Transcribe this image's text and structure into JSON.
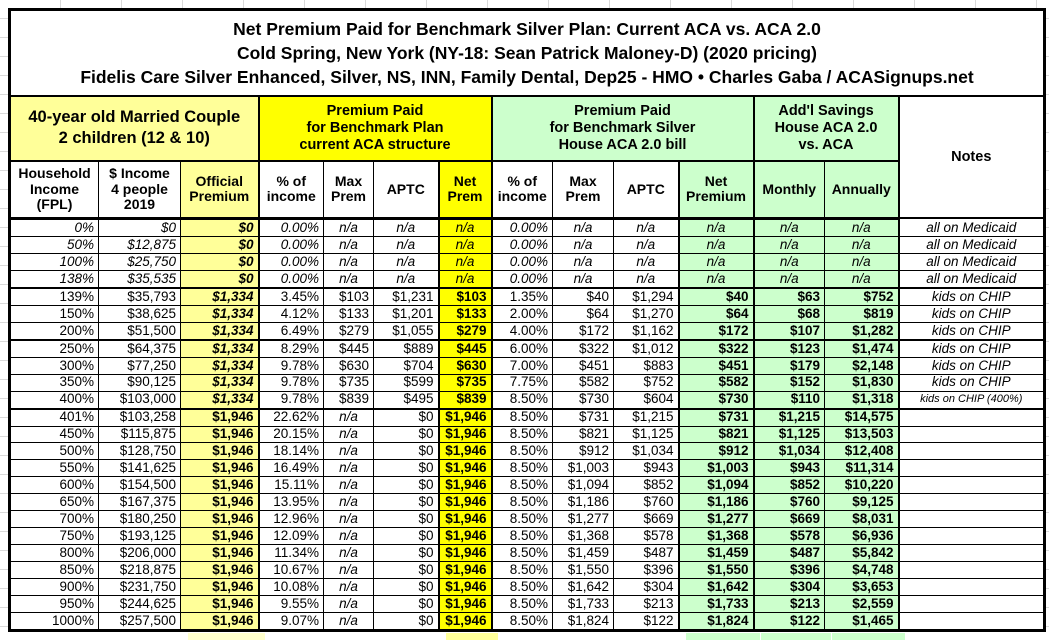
{
  "title": {
    "line1": "Net Premium Paid for Benchmark Silver Plan: Current ACA vs. ACA 2.0",
    "line2": "Cold Spring, New York (NY-18: Sean Patrick Maloney-D) (2020 pricing)",
    "line3": "Fidelis Care Silver Enhanced, Silver, NS, INN, Family Dental, Dep25 - HMO • Charles Gaba / ACASignups.net"
  },
  "group_headers": {
    "household": "40-year old Married Couple\n2 children (12 & 10)",
    "aca_current": "Premium Paid\nfor Benchmark Plan\ncurrent ACA structure",
    "aca2": "Premium Paid\nfor Benchmark Silver\nHouse ACA 2.0 bill",
    "savings": "Add'l Savings\nHouse ACA 2.0\nvs. ACA",
    "notes": "Notes"
  },
  "column_headers": [
    "Household\nIncome\n(FPL)",
    "$ Income\n4 people\n2019",
    "Official\nPremium",
    "% of\nincome",
    "Max\nPrem",
    "APTC",
    "Net\nPrem",
    "% of\nincome",
    "Max\nPrem",
    "APTC",
    "Net\nPremium",
    "Monthly",
    "Annually"
  ],
  "colors": {
    "pale_yellow": "#FFFF99",
    "bright_yellow": "#FFFF00",
    "pale_green": "#CCFFCC",
    "border": "#000000"
  },
  "separator_rows": [
    "139%",
    "250%",
    "401%"
  ],
  "rows": [
    {
      "fpl": "0%",
      "income": "$0",
      "official": "$0",
      "aca_pct": "0.00%",
      "aca_max": "n/a",
      "aca_aptc": "n/a",
      "aca_net": "n/a",
      "aca2_pct": "0.00%",
      "aca2_max": "n/a",
      "aca2_aptc": "n/a",
      "aca2_net": "n/a",
      "monthly": "n/a",
      "annually": "n/a",
      "note": "all on Medicaid"
    },
    {
      "fpl": "50%",
      "income": "$12,875",
      "official": "$0",
      "aca_pct": "0.00%",
      "aca_max": "n/a",
      "aca_aptc": "n/a",
      "aca_net": "n/a",
      "aca2_pct": "0.00%",
      "aca2_max": "n/a",
      "aca2_aptc": "n/a",
      "aca2_net": "n/a",
      "monthly": "n/a",
      "annually": "n/a",
      "note": "all on Medicaid"
    },
    {
      "fpl": "100%",
      "income": "$25,750",
      "official": "$0",
      "aca_pct": "0.00%",
      "aca_max": "n/a",
      "aca_aptc": "n/a",
      "aca_net": "n/a",
      "aca2_pct": "0.00%",
      "aca2_max": "n/a",
      "aca2_aptc": "n/a",
      "aca2_net": "n/a",
      "monthly": "n/a",
      "annually": "n/a",
      "note": "all on Medicaid"
    },
    {
      "fpl": "138%",
      "income": "$35,535",
      "official": "$0",
      "aca_pct": "0.00%",
      "aca_max": "n/a",
      "aca_aptc": "n/a",
      "aca_net": "n/a",
      "aca2_pct": "0.00%",
      "aca2_max": "n/a",
      "aca2_aptc": "n/a",
      "aca2_net": "n/a",
      "monthly": "n/a",
      "annually": "n/a",
      "note": "all on Medicaid"
    },
    {
      "fpl": "139%",
      "income": "$35,793",
      "official": "$1,334",
      "aca_pct": "3.45%",
      "aca_max": "$103",
      "aca_aptc": "$1,231",
      "aca_net": "$103",
      "aca2_pct": "1.35%",
      "aca2_max": "$40",
      "aca2_aptc": "$1,294",
      "aca2_net": "$40",
      "monthly": "$63",
      "annually": "$752",
      "note": "kids on CHIP"
    },
    {
      "fpl": "150%",
      "income": "$38,625",
      "official": "$1,334",
      "aca_pct": "4.12%",
      "aca_max": "$133",
      "aca_aptc": "$1,201",
      "aca_net": "$133",
      "aca2_pct": "2.00%",
      "aca2_max": "$64",
      "aca2_aptc": "$1,270",
      "aca2_net": "$64",
      "monthly": "$68",
      "annually": "$819",
      "note": "kids on CHIP"
    },
    {
      "fpl": "200%",
      "income": "$51,500",
      "official": "$1,334",
      "aca_pct": "6.49%",
      "aca_max": "$279",
      "aca_aptc": "$1,055",
      "aca_net": "$279",
      "aca2_pct": "4.00%",
      "aca2_max": "$172",
      "aca2_aptc": "$1,162",
      "aca2_net": "$172",
      "monthly": "$107",
      "annually": "$1,282",
      "note": "kids on CHIP"
    },
    {
      "fpl": "250%",
      "income": "$64,375",
      "official": "$1,334",
      "aca_pct": "8.29%",
      "aca_max": "$445",
      "aca_aptc": "$889",
      "aca_net": "$445",
      "aca2_pct": "6.00%",
      "aca2_max": "$322",
      "aca2_aptc": "$1,012",
      "aca2_net": "$322",
      "monthly": "$123",
      "annually": "$1,474",
      "note": "kids on CHIP"
    },
    {
      "fpl": "300%",
      "income": "$77,250",
      "official": "$1,334",
      "aca_pct": "9.78%",
      "aca_max": "$630",
      "aca_aptc": "$704",
      "aca_net": "$630",
      "aca2_pct": "7.00%",
      "aca2_max": "$451",
      "aca2_aptc": "$883",
      "aca2_net": "$451",
      "monthly": "$179",
      "annually": "$2,148",
      "note": "kids on CHIP"
    },
    {
      "fpl": "350%",
      "income": "$90,125",
      "official": "$1,334",
      "aca_pct": "9.78%",
      "aca_max": "$735",
      "aca_aptc": "$599",
      "aca_net": "$735",
      "aca2_pct": "7.75%",
      "aca2_max": "$582",
      "aca2_aptc": "$752",
      "aca2_net": "$582",
      "monthly": "$152",
      "annually": "$1,830",
      "note": "kids on CHIP"
    },
    {
      "fpl": "400%",
      "income": "$103,000",
      "official": "$1,334",
      "aca_pct": "9.78%",
      "aca_max": "$839",
      "aca_aptc": "$495",
      "aca_net": "$839",
      "aca2_pct": "8.50%",
      "aca2_max": "$730",
      "aca2_aptc": "$604",
      "aca2_net": "$730",
      "monthly": "$110",
      "annually": "$1,318",
      "note": "kids on CHIP (400%)"
    },
    {
      "fpl": "401%",
      "income": "$103,258",
      "official": "$1,946",
      "aca_pct": "22.62%",
      "aca_max": "n/a",
      "aca_aptc": "$0",
      "aca_net": "$1,946",
      "aca2_pct": "8.50%",
      "aca2_max": "$731",
      "aca2_aptc": "$1,215",
      "aca2_net": "$731",
      "monthly": "$1,215",
      "annually": "$14,575",
      "note": ""
    },
    {
      "fpl": "450%",
      "income": "$115,875",
      "official": "$1,946",
      "aca_pct": "20.15%",
      "aca_max": "n/a",
      "aca_aptc": "$0",
      "aca_net": "$1,946",
      "aca2_pct": "8.50%",
      "aca2_max": "$821",
      "aca2_aptc": "$1,125",
      "aca2_net": "$821",
      "monthly": "$1,125",
      "annually": "$13,503",
      "note": ""
    },
    {
      "fpl": "500%",
      "income": "$128,750",
      "official": "$1,946",
      "aca_pct": "18.14%",
      "aca_max": "n/a",
      "aca_aptc": "$0",
      "aca_net": "$1,946",
      "aca2_pct": "8.50%",
      "aca2_max": "$912",
      "aca2_aptc": "$1,034",
      "aca2_net": "$912",
      "monthly": "$1,034",
      "annually": "$12,408",
      "note": ""
    },
    {
      "fpl": "550%",
      "income": "$141,625",
      "official": "$1,946",
      "aca_pct": "16.49%",
      "aca_max": "n/a",
      "aca_aptc": "$0",
      "aca_net": "$1,946",
      "aca2_pct": "8.50%",
      "aca2_max": "$1,003",
      "aca2_aptc": "$943",
      "aca2_net": "$1,003",
      "monthly": "$943",
      "annually": "$11,314",
      "note": ""
    },
    {
      "fpl": "600%",
      "income": "$154,500",
      "official": "$1,946",
      "aca_pct": "15.11%",
      "aca_max": "n/a",
      "aca_aptc": "$0",
      "aca_net": "$1,946",
      "aca2_pct": "8.50%",
      "aca2_max": "$1,094",
      "aca2_aptc": "$852",
      "aca2_net": "$1,094",
      "monthly": "$852",
      "annually": "$10,220",
      "note": ""
    },
    {
      "fpl": "650%",
      "income": "$167,375",
      "official": "$1,946",
      "aca_pct": "13.95%",
      "aca_max": "n/a",
      "aca_aptc": "$0",
      "aca_net": "$1,946",
      "aca2_pct": "8.50%",
      "aca2_max": "$1,186",
      "aca2_aptc": "$760",
      "aca2_net": "$1,186",
      "monthly": "$760",
      "annually": "$9,125",
      "note": ""
    },
    {
      "fpl": "700%",
      "income": "$180,250",
      "official": "$1,946",
      "aca_pct": "12.96%",
      "aca_max": "n/a",
      "aca_aptc": "$0",
      "aca_net": "$1,946",
      "aca2_pct": "8.50%",
      "aca2_max": "$1,277",
      "aca2_aptc": "$669",
      "aca2_net": "$1,277",
      "monthly": "$669",
      "annually": "$8,031",
      "note": ""
    },
    {
      "fpl": "750%",
      "income": "$193,125",
      "official": "$1,946",
      "aca_pct": "12.09%",
      "aca_max": "n/a",
      "aca_aptc": "$0",
      "aca_net": "$1,946",
      "aca2_pct": "8.50%",
      "aca2_max": "$1,368",
      "aca2_aptc": "$578",
      "aca2_net": "$1,368",
      "monthly": "$578",
      "annually": "$6,936",
      "note": ""
    },
    {
      "fpl": "800%",
      "income": "$206,000",
      "official": "$1,946",
      "aca_pct": "11.34%",
      "aca_max": "n/a",
      "aca_aptc": "$0",
      "aca_net": "$1,946",
      "aca2_pct": "8.50%",
      "aca2_max": "$1,459",
      "aca2_aptc": "$487",
      "aca2_net": "$1,459",
      "monthly": "$487",
      "annually": "$5,842",
      "note": ""
    },
    {
      "fpl": "850%",
      "income": "$218,875",
      "official": "$1,946",
      "aca_pct": "10.67%",
      "aca_max": "n/a",
      "aca_aptc": "$0",
      "aca_net": "$1,946",
      "aca2_pct": "8.50%",
      "aca2_max": "$1,550",
      "aca2_aptc": "$396",
      "aca2_net": "$1,550",
      "monthly": "$396",
      "annually": "$4,748",
      "note": ""
    },
    {
      "fpl": "900%",
      "income": "$231,750",
      "official": "$1,946",
      "aca_pct": "10.08%",
      "aca_max": "n/a",
      "aca_aptc": "$0",
      "aca_net": "$1,946",
      "aca2_pct": "8.50%",
      "aca2_max": "$1,642",
      "aca2_aptc": "$304",
      "aca2_net": "$1,642",
      "monthly": "$304",
      "annually": "$3,653",
      "note": ""
    },
    {
      "fpl": "950%",
      "income": "$244,625",
      "official": "$1,946",
      "aca_pct": "9.55%",
      "aca_max": "n/a",
      "aca_aptc": "$0",
      "aca_net": "$1,946",
      "aca2_pct": "8.50%",
      "aca2_max": "$1,733",
      "aca2_aptc": "$213",
      "aca2_net": "$1,733",
      "monthly": "$213",
      "annually": "$2,559",
      "note": ""
    },
    {
      "fpl": "1000%",
      "income": "$257,500",
      "official": "$1,946",
      "aca_pct": "9.07%",
      "aca_max": "n/a",
      "aca_aptc": "$0",
      "aca_net": "$1,946",
      "aca2_pct": "8.50%",
      "aca2_max": "$1,824",
      "aca2_aptc": "$122",
      "aca2_net": "$1,824",
      "monthly": "$122",
      "annually": "$1,465",
      "note": ""
    }
  ]
}
